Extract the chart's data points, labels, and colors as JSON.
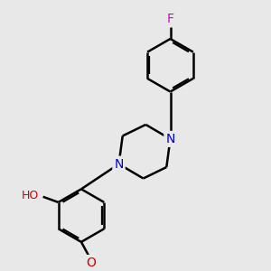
{
  "background_color": "#e8e8e8",
  "bond_color": "#000000",
  "bond_width": 1.8,
  "figsize": [
    3.0,
    3.0
  ],
  "dpi": 100,
  "atom_colors": {
    "N": "#0000cc",
    "O": "#cc0000",
    "F": "#cc00cc",
    "C": "#000000"
  },
  "font_size": 10,
  "font_size_F": 10,
  "font_size_N": 10,
  "font_size_O": 10,
  "font_size_H": 9
}
